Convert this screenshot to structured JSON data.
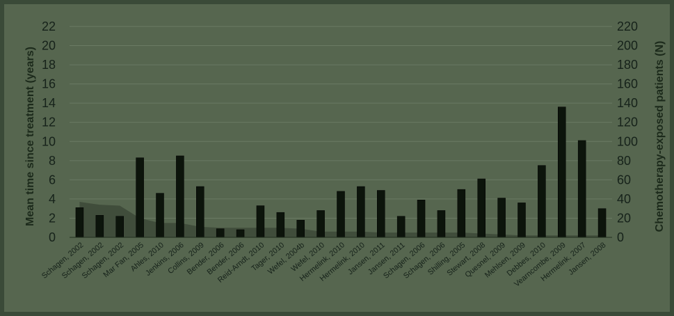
{
  "chart_data": {
    "type": "bar",
    "title": "",
    "ylabel_left": "Mean time since treatment (years)",
    "ylabel_right": "Chemotherapy-exposed patients (N)",
    "ylim_left": [
      0,
      22
    ],
    "ylim_right": [
      0,
      220
    ],
    "y_ticks_left": [
      "0",
      "2",
      "4",
      "6",
      "8",
      "10",
      "12",
      "14",
      "16",
      "18",
      "20",
      "22"
    ],
    "y_ticks_right": [
      "0",
      "20",
      "40",
      "60",
      "80",
      "100",
      "120",
      "140",
      "160",
      "180",
      "200",
      "220"
    ],
    "grid": true,
    "categories": [
      "Schagen, 2002",
      "Schagen, 2002",
      "Schagen, 2002",
      "Mar Fan, 2005",
      "Ahles, 2010",
      "Jenkins, 2006",
      "Collins, 2009",
      "Bender, 2006",
      "Bender, 2006",
      "Reid-Arndt, 2010",
      "Tager, 2010",
      "Wefel, 2004b",
      "Wefel, 2010",
      "Hermelink, 2010",
      "Hermelink, 2010",
      "Jansen, 2011",
      "Jansen, 2011",
      "Schagen, 2006",
      "Schagen, 2006",
      "Shilling, 2005",
      "Stewart, 2008",
      "Quesnel, 2009",
      "Mehlsen, 2009",
      "Debbes, 2010",
      "Vearncombe, 2009",
      "Hermelink, 2007",
      "Jansen, 2008"
    ],
    "series": [
      {
        "type": "bar",
        "axis": "right",
        "color": "#0c140b",
        "values": [
          31,
          23,
          22,
          83,
          46,
          85,
          53,
          9,
          8,
          33,
          26,
          18,
          28,
          48,
          53,
          49,
          22,
          39,
          28,
          50,
          61,
          41,
          36,
          75,
          136,
          101,
          30
        ]
      },
      {
        "type": "area",
        "axis": "left",
        "color": "#404d3b",
        "values": [
          3.7,
          3.4,
          3.3,
          2.0,
          1.5,
          1.5,
          1.1,
          1.0,
          1.0,
          1.0,
          1.0,
          0.9,
          0.6,
          0.6,
          0.6,
          0.5,
          0.5,
          0.5,
          0.5,
          0.5,
          0.4,
          0.3,
          0.2,
          0.2,
          0.2,
          0.2,
          0.2
        ]
      }
    ]
  }
}
